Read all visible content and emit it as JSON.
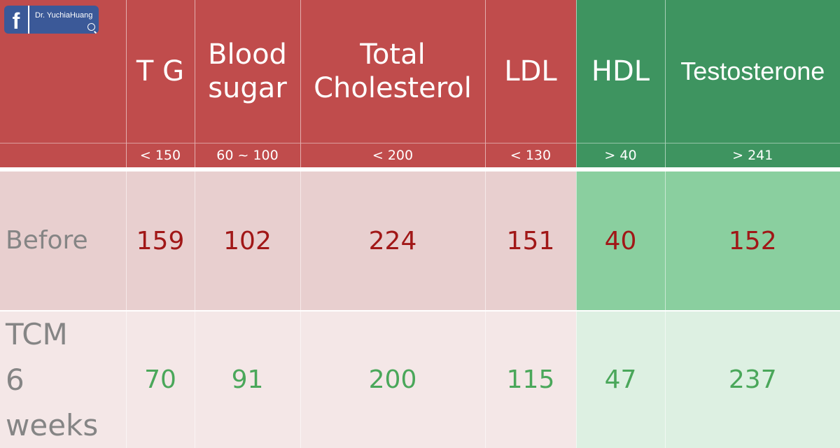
{
  "badge": {
    "logo_letter": "f",
    "name": "Dr. YuchiaHuang",
    "icon": "search-icon"
  },
  "colors": {
    "header_red": "#c04c4c",
    "header_green": "#3e9460",
    "before_value": "#a11717",
    "after_value": "#4aa75a"
  },
  "table": {
    "columns": [
      {
        "label_lines": [
          "T G"
        ],
        "reference": "< 150"
      },
      {
        "label_lines": [
          "Blood",
          "sugar"
        ],
        "reference": "60 ~ 100"
      },
      {
        "label_lines": [
          "Total",
          "Cholesterol"
        ],
        "reference": "< 200"
      },
      {
        "label_lines": [
          "LDL"
        ],
        "reference": "< 130"
      },
      {
        "label_lines": [
          "HDL"
        ],
        "reference": "> 40"
      },
      {
        "label_lines": [
          "Testosterone"
        ],
        "reference": "> 241"
      }
    ],
    "rows": [
      {
        "label_lines": [
          "Before"
        ],
        "values": [
          "159",
          "102",
          "224",
          "151",
          "40",
          "152"
        ]
      },
      {
        "label_lines": [
          "TCM",
          "6 weeks"
        ],
        "values": [
          "70",
          "91",
          "200",
          "115",
          "47",
          "237"
        ]
      }
    ]
  }
}
